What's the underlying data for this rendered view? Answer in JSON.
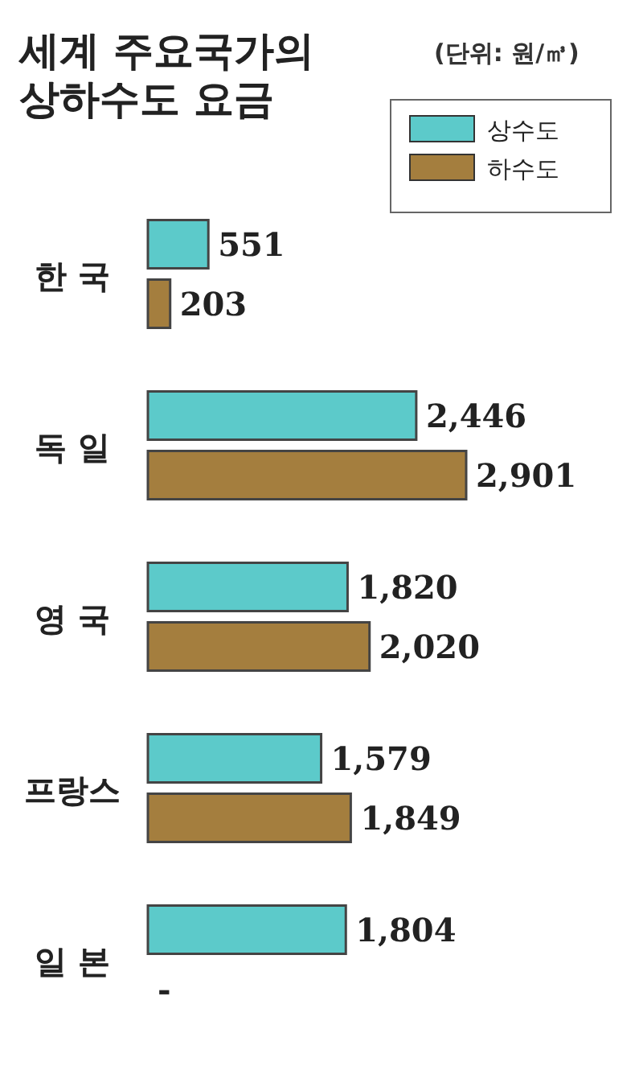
{
  "chart_data": {
    "type": "bar",
    "orientation": "horizontal",
    "title": "세계 주요국가의\n상하수도 요금",
    "annotations": [
      "(단위: 원/㎥)"
    ],
    "categories": [
      "한 국",
      "독 일",
      "영 국",
      "프랑스",
      "일 본"
    ],
    "legend": "top right",
    "series": [
      {
        "name": "상수도",
        "color": "#5ccaca",
        "values": [
          551,
          2446,
          1820,
          1579,
          1804
        ],
        "value_labels": [
          "551",
          "2,446",
          "1,820",
          "1,579",
          "1,804"
        ]
      },
      {
        "name": "하수도",
        "color": "#a47e3e",
        "values": [
          203,
          2901,
          2020,
          1849,
          null
        ],
        "value_labels": [
          "203",
          "2,901",
          "2,020",
          "1,849",
          "-"
        ]
      }
    ]
  }
}
